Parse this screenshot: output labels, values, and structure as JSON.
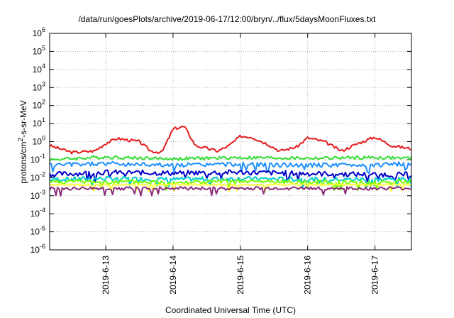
{
  "chart_data": {
    "type": "line",
    "title": "/data/run/goesPlots/archive/2019-06-17/12:00/bryn/../flux/5daysMoonFluxes.txt",
    "xlabel": "Coordinated Universal Time (UTC)",
    "ylabel": "protons/cm2-s-sr-MeV",
    "yscale": "log",
    "ylim": [
      1e-06,
      1000000.0
    ],
    "xlim": [
      "2019-06-12T04:00",
      "2019-06-17T13:00"
    ],
    "xticks": [
      "2019-6-13",
      "2019-6-14",
      "2019-6-15",
      "2019-6-16",
      "2019-6-17"
    ],
    "yticks": [
      {
        "base": "10",
        "exp": "-6"
      },
      {
        "base": "10",
        "exp": "-5"
      },
      {
        "base": "10",
        "exp": "-4"
      },
      {
        "base": "10",
        "exp": "-3"
      },
      {
        "base": "10",
        "exp": "-2"
      },
      {
        "base": "10",
        "exp": "-1"
      },
      {
        "base": "10",
        "exp": "0"
      },
      {
        "base": "10",
        "exp": "1"
      },
      {
        "base": "10",
        "exp": "2"
      },
      {
        "base": "10",
        "exp": "3"
      },
      {
        "base": "10",
        "exp": "4"
      },
      {
        "base": "10",
        "exp": "5"
      },
      {
        "base": "10",
        "exp": "6"
      }
    ],
    "grid": true,
    "series": [
      {
        "color": "#e41a1c",
        "x": [
          "2019-06-12T04:00",
          "2019-06-12T12:00",
          "2019-06-12T20:00",
          "2019-06-13T00:00",
          "2019-06-13T04:00",
          "2019-06-13T12:00",
          "2019-06-13T16:00",
          "2019-06-13T20:00",
          "2019-06-14T00:00",
          "2019-06-14T04:00",
          "2019-06-14T08:00",
          "2019-06-14T16:00",
          "2019-06-14T20:00",
          "2019-06-15T00:00",
          "2019-06-15T04:00",
          "2019-06-15T10:00",
          "2019-06-15T14:00",
          "2019-06-15T20:00",
          "2019-06-16T00:00",
          "2019-06-16T06:00",
          "2019-06-16T12:00",
          "2019-06-16T18:00",
          "2019-06-17T00:00",
          "2019-06-17T06:00",
          "2019-06-17T13:00"
        ],
        "y": [
          0.6,
          0.25,
          0.3,
          0.8,
          1.5,
          1.0,
          0.3,
          0.25,
          5,
          7,
          0.6,
          0.3,
          0.6,
          2.0,
          1.8,
          0.7,
          0.3,
          0.5,
          1.6,
          1.0,
          0.3,
          0.8,
          1.8,
          0.6,
          0.4
        ]
      },
      {
        "color": "#33dd33",
        "x": [
          "2019-06-12T04:00",
          "2019-06-13T00:00",
          "2019-06-14T00:00",
          "2019-06-15T00:00",
          "2019-06-16T00:00",
          "2019-06-17T00:00",
          "2019-06-17T13:00"
        ],
        "y": [
          0.1,
          0.14,
          0.11,
          0.13,
          0.12,
          0.13,
          0.12
        ]
      },
      {
        "color": "#1e90ff",
        "x": [
          "2019-06-12T04:00",
          "2019-06-13T00:00",
          "2019-06-14T00:00",
          "2019-06-15T00:00",
          "2019-06-16T00:00",
          "2019-06-17T00:00",
          "2019-06-17T13:00"
        ],
        "y": [
          0.05,
          0.06,
          0.05,
          0.055,
          0.05,
          0.05,
          0.06
        ]
      },
      {
        "color": "#0000cc",
        "x": [
          "2019-06-12T04:00",
          "2019-06-13T00:00",
          "2019-06-14T00:00",
          "2019-06-15T00:00",
          "2019-06-16T00:00",
          "2019-06-17T00:00",
          "2019-06-17T13:00"
        ],
        "y": [
          0.015,
          0.02,
          0.018,
          0.02,
          0.017,
          0.015,
          0.015
        ]
      },
      {
        "color": "#00cccc",
        "x": [
          "2019-06-12T04:00",
          "2019-06-13T00:00",
          "2019-06-14T00:00",
          "2019-06-15T00:00",
          "2019-06-16T00:00",
          "2019-06-17T00:00",
          "2019-06-17T13:00"
        ],
        "y": [
          0.008,
          0.009,
          0.008,
          0.009,
          0.008,
          0.008,
          0.008
        ]
      },
      {
        "color": "#7cfc00",
        "x": [
          "2019-06-12T04:00",
          "2019-06-13T00:00",
          "2019-06-14T00:00",
          "2019-06-15T00:00",
          "2019-06-16T00:00",
          "2019-06-17T00:00",
          "2019-06-17T13:00"
        ],
        "y": [
          0.006,
          0.006,
          0.0055,
          0.006,
          0.0058,
          0.0055,
          0.006
        ]
      },
      {
        "color": "#ffff33",
        "x": [
          "2019-06-12T04:00",
          "2019-06-13T00:00",
          "2019-06-14T00:00",
          "2019-06-15T00:00",
          "2019-06-16T00:00",
          "2019-06-17T00:00",
          "2019-06-17T13:00"
        ],
        "y": [
          0.004,
          0.004,
          0.0042,
          0.004,
          0.0041,
          0.004,
          0.0042
        ]
      },
      {
        "color": "#8b2b7a",
        "x": [
          "2019-06-12T04:00",
          "2019-06-13T00:00",
          "2019-06-14T00:00",
          "2019-06-15T00:00",
          "2019-06-16T00:00",
          "2019-06-17T00:00",
          "2019-06-17T13:00"
        ],
        "y": [
          0.0025,
          0.0025,
          0.0026,
          0.0025,
          0.0026,
          0.0025,
          0.0025
        ]
      }
    ]
  }
}
